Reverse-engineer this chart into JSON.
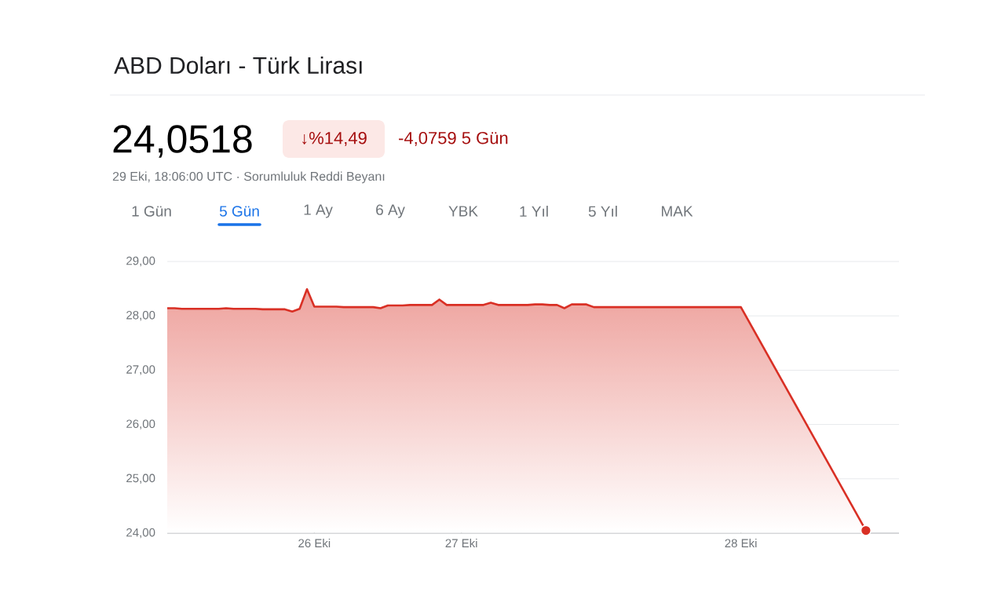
{
  "chart_data": {
    "type": "line",
    "title": "ABD Doları - Türk Lirası",
    "annotations": [
      "24,0518",
      "↓%14,49",
      "-4,0759 5 Gün",
      "29 Eki, 18:06:00 UTC · Sorumluluk Reddi Beyanı",
      "1 Gün",
      "5 Gün",
      "1 Ay",
      "6 Ay",
      "YBK",
      "1 Yıl",
      "5 Yıl",
      "MAK"
    ],
    "categories": [
      null,
      null,
      null,
      null,
      null,
      null,
      null,
      null,
      null,
      null,
      null,
      null,
      null,
      null,
      null,
      null,
      null,
      null,
      null,
      null,
      "26 Eki",
      null,
      null,
      null,
      null,
      null,
      null,
      null,
      null,
      null,
      null,
      null,
      null,
      null,
      null,
      null,
      null,
      null,
      null,
      null,
      "27 Eki",
      null,
      null,
      null,
      null,
      null,
      null,
      null,
      null,
      null,
      null,
      null,
      null,
      null,
      null,
      null,
      null,
      null,
      null,
      null,
      null,
      null,
      null,
      null,
      null,
      null,
      null,
      null,
      null,
      null,
      null,
      null,
      null,
      null,
      null,
      null,
      null,
      null,
      "28 Eki",
      null,
      null,
      null,
      null,
      null,
      null,
      null,
      null,
      null,
      null,
      null,
      null,
      null,
      null,
      null,
      null,
      null
    ],
    "series": [
      {
        "color": "#d93025",
        "values": [
          28.14,
          28.14,
          28.13,
          28.13,
          28.13,
          28.13,
          28.13,
          28.13,
          28.14,
          28.13,
          28.13,
          28.13,
          28.13,
          28.12,
          28.12,
          28.12,
          28.12,
          28.08,
          28.13,
          28.49,
          28.17,
          28.17,
          28.17,
          28.17,
          28.16,
          28.16,
          28.16,
          28.16,
          28.16,
          28.14,
          28.19,
          28.19,
          28.19,
          28.2,
          28.2,
          28.2,
          28.2,
          28.3,
          28.2,
          28.2,
          28.2,
          28.2,
          28.2,
          28.2,
          28.24,
          28.2,
          28.2,
          28.2,
          28.2,
          28.2,
          28.21,
          28.21,
          28.2,
          28.2,
          28.14,
          28.21,
          28.21,
          28.21,
          28.16,
          28.16,
          28.16,
          28.16,
          28.16,
          28.16,
          28.16,
          28.16,
          28.16,
          28.16,
          28.16,
          28.16,
          28.16,
          28.16,
          28.16,
          28.16,
          28.16,
          28.16,
          28.16,
          28.16,
          28.16,
          null,
          null,
          null,
          null,
          null,
          null,
          null,
          null,
          null,
          null,
          null,
          null,
          null,
          null,
          null,
          null,
          24.05
        ]
      },
      {
        "type": "scatter",
        "color": "#d93025",
        "marker": "circle",
        "values": [
          null,
          null,
          null,
          null,
          null,
          null,
          null,
          null,
          null,
          null,
          null,
          null,
          null,
          null,
          null,
          null,
          null,
          null,
          null,
          null,
          null,
          null,
          null,
          null,
          null,
          null,
          null,
          null,
          null,
          null,
          null,
          null,
          null,
          null,
          null,
          null,
          null,
          null,
          null,
          null,
          null,
          null,
          null,
          null,
          null,
          null,
          null,
          null,
          null,
          null,
          null,
          null,
          null,
          null,
          null,
          null,
          null,
          null,
          null,
          null,
          null,
          null,
          null,
          null,
          null,
          null,
          null,
          null,
          null,
          null,
          null,
          null,
          null,
          null,
          null,
          null,
          null,
          null,
          null,
          null,
          null,
          null,
          null,
          null,
          null,
          null,
          null,
          null,
          null,
          null,
          null,
          null,
          null,
          null,
          null,
          24.05
        ]
      }
    ],
    "ylim": [
      24,
      29
    ],
    "yticks": [
      {
        "value": 24,
        "label": "24,00"
      },
      {
        "value": 25,
        "label": "25,00"
      },
      {
        "value": 26,
        "label": "26,00"
      },
      {
        "value": 27,
        "label": "27,00"
      },
      {
        "value": 28,
        "label": "28,00"
      },
      {
        "value": 29,
        "label": "29,00"
      }
    ],
    "grid": "y"
  }
}
